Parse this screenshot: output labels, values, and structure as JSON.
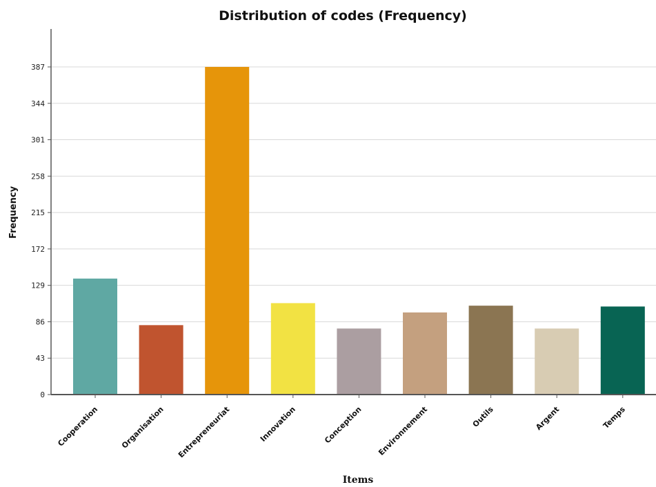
{
  "chart_data": {
    "type": "bar",
    "title": "Distribution of codes (Frequency)",
    "xlabel": "Items",
    "ylabel": "Frequency",
    "categories": [
      "Cooperation",
      "Organisation",
      "Entrepreneuriat",
      "Innovation",
      "Conception",
      "Environnement",
      "Outils",
      "Argent",
      "Temps"
    ],
    "values": [
      137,
      82,
      387,
      108,
      78,
      97,
      105,
      78,
      104
    ],
    "colors": [
      "#5fa8a3",
      "#c0542f",
      "#e6950a",
      "#f2e243",
      "#ab9ea1",
      "#c4a07f",
      "#8b7552",
      "#d8ccb3",
      "#086453"
    ],
    "yticks": [
      "0",
      "43",
      "86",
      "129",
      "172",
      "215",
      "258",
      "301",
      "344",
      "387"
    ],
    "ylim": [
      0,
      387
    ],
    "grid": "horizontal"
  }
}
